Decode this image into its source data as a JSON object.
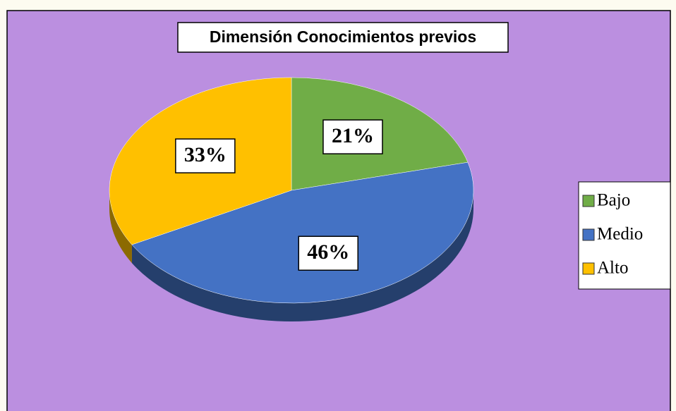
{
  "chart_data": {
    "type": "pie",
    "title": "Dimensión Conocimientos previos",
    "categories": [
      "Bajo",
      "Medio",
      "Alto"
    ],
    "values": [
      21,
      46,
      33
    ],
    "value_labels": [
      "21%",
      "46%",
      "33%"
    ],
    "colors": [
      "#70ad47",
      "#4472c4",
      "#ffc000"
    ],
    "legend": "right"
  }
}
